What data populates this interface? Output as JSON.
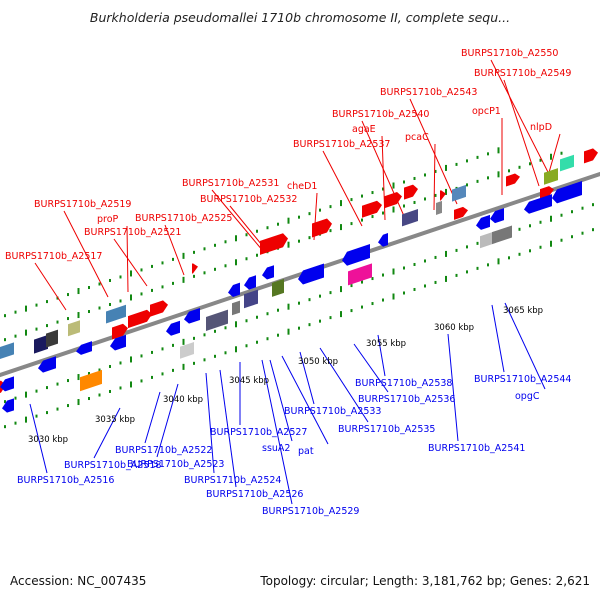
{
  "title": "Burkholderia pseudomallei 1710b chromosome II, complete sequ...",
  "footer": {
    "accession_label": "Accession:",
    "accession": "NC_007435",
    "topology_label": "Topology:",
    "topology": "circular",
    "length_label": "Length:",
    "length": "3,181,762 bp",
    "genes_label": "Genes:",
    "genes": "2,621"
  },
  "colors": {
    "forward_strand": "#ee0000",
    "reverse_strand": "#0000ee",
    "backbone": "#888888",
    "tick": "#118811"
  },
  "scale_labels": [
    "3030 kbp",
    "3035 kbp",
    "3040 kbp",
    "3045 kbp",
    "3050 kbp",
    "3055 kbp",
    "3060 kbp",
    "3065 kbp"
  ],
  "top_labels": [
    "BURPS1710b_A2517",
    "BURPS1710b_A2519",
    "proP",
    "BURPS1710b_A2521",
    "BURPS1710b_A2525",
    "BURPS1710b_A2531",
    "BURPS1710b_A2532",
    "cheD1",
    "BURPS1710b_A2537",
    "agaE",
    "BURPS1710b_A2540",
    "pcaC",
    "BURPS1710b_A2543",
    "opcP1",
    "BURPS1710b_A2549",
    "nlpD",
    "BURPS1710b_A2550"
  ],
  "bottom_labels": [
    "BURPS1710b_A2516",
    "BURPS1710b_A2518",
    "BURPS1710b_A2522",
    "BURPS1710b_A2523",
    "BURPS1710b_A2524",
    "BURPS1710b_A2526",
    "BURPS1710b_A2527",
    "BURPS1710b_A2529",
    "ssuA2",
    "pat",
    "BURPS1710b_A2533",
    "BURPS1710b_A2535",
    "BURPS1710b_A2536",
    "BURPS1710b_A2538",
    "BURPS1710b_A2541",
    "BURPS1710b_A2544",
    "opgC"
  ]
}
